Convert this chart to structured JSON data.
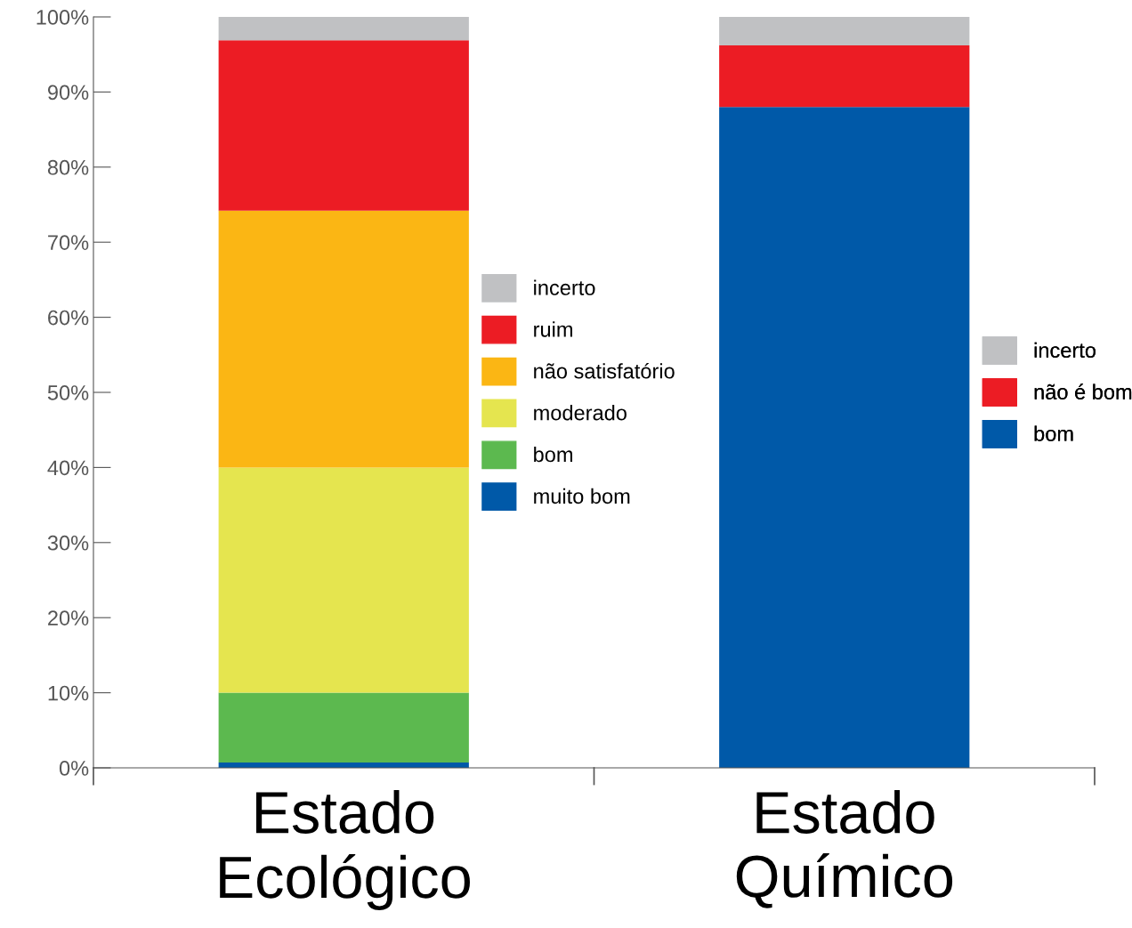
{
  "chart_data": {
    "type": "bar",
    "stacked": true,
    "categories": [
      "Estado\nEcológico",
      "Estado\nQuímico"
    ],
    "ylim": [
      0,
      100
    ],
    "yticks": [
      {
        "value": 0,
        "label": "0%"
      },
      {
        "value": 10,
        "label": "10%"
      },
      {
        "value": 20,
        "label": "20%"
      },
      {
        "value": 30,
        "label": "30%"
      },
      {
        "value": 40,
        "label": "40%"
      },
      {
        "value": 50,
        "label": "50%"
      },
      {
        "value": 60,
        "label": "60%"
      },
      {
        "value": 70,
        "label": "70%"
      },
      {
        "value": 80,
        "label": "80%"
      },
      {
        "value": 90,
        "label": "90%"
      },
      {
        "value": 100,
        "label": "100%"
      }
    ],
    "legend": "right",
    "grid": false,
    "series": [
      {
        "name": "muito bom",
        "color": "#0059a8",
        "values": [
          0.7,
          null
        ]
      },
      {
        "name": "bom",
        "color": "#5cb94f",
        "values": [
          9.3,
          null
        ]
      },
      {
        "name": "moderado",
        "color": "#e5e54f",
        "values": [
          30,
          null
        ]
      },
      {
        "name": "não satisfatório",
        "color": "#fbb614",
        "values": [
          34.2,
          null
        ]
      },
      {
        "name": "ruim",
        "color": "#ec1c24",
        "values": [
          22.7,
          null
        ]
      },
      {
        "name": "incerto",
        "color": "#c0c1c3",
        "values": [
          3.1,
          null
        ]
      },
      {
        "name": "bom",
        "color": "#0059a8",
        "values": [
          null,
          88
        ]
      },
      {
        "name": "não é bom",
        "color": "#ec1c24",
        "values": [
          null,
          8.2
        ]
      },
      {
        "name": "incerto",
        "color": "#c0c1c3",
        "values": [
          null,
          3.8
        ]
      }
    ]
  }
}
